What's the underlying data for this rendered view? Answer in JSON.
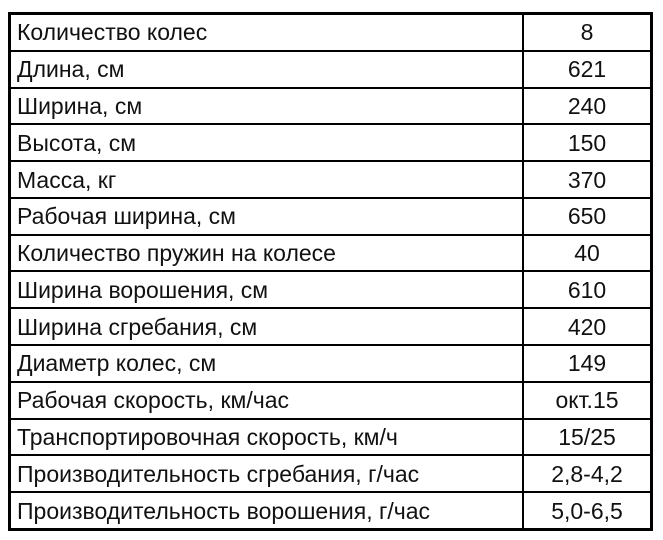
{
  "table": {
    "rows": [
      {
        "label": "Количество колес",
        "value": "8"
      },
      {
        "label": "Длина, см",
        "value": "621"
      },
      {
        "label": "Ширина, см",
        "value": "240"
      },
      {
        "label": "Высота, см",
        "value": "150"
      },
      {
        "label": "Масса, кг",
        "value": "370"
      },
      {
        "label": "Рабочая ширина, см",
        "value": "650"
      },
      {
        "label": "Количество пружин на колесе",
        "value": "40"
      },
      {
        "label": "Ширина ворошения, см",
        "value": "610"
      },
      {
        "label": "Ширина сгребания, см",
        "value": "420"
      },
      {
        "label": "Диаметр колес, см",
        "value": "149"
      },
      {
        "label": "Рабочая скорость, км/час",
        "value": "окт.15"
      },
      {
        "label": "Транспортировочная скорость, км/ч",
        "value": "15/25"
      },
      {
        "label": "Производительность сгребания, г/час",
        "value": "2,8-4,2"
      },
      {
        "label": "Производительность ворошения, г/час",
        "value": "5,0-6,5"
      }
    ]
  }
}
